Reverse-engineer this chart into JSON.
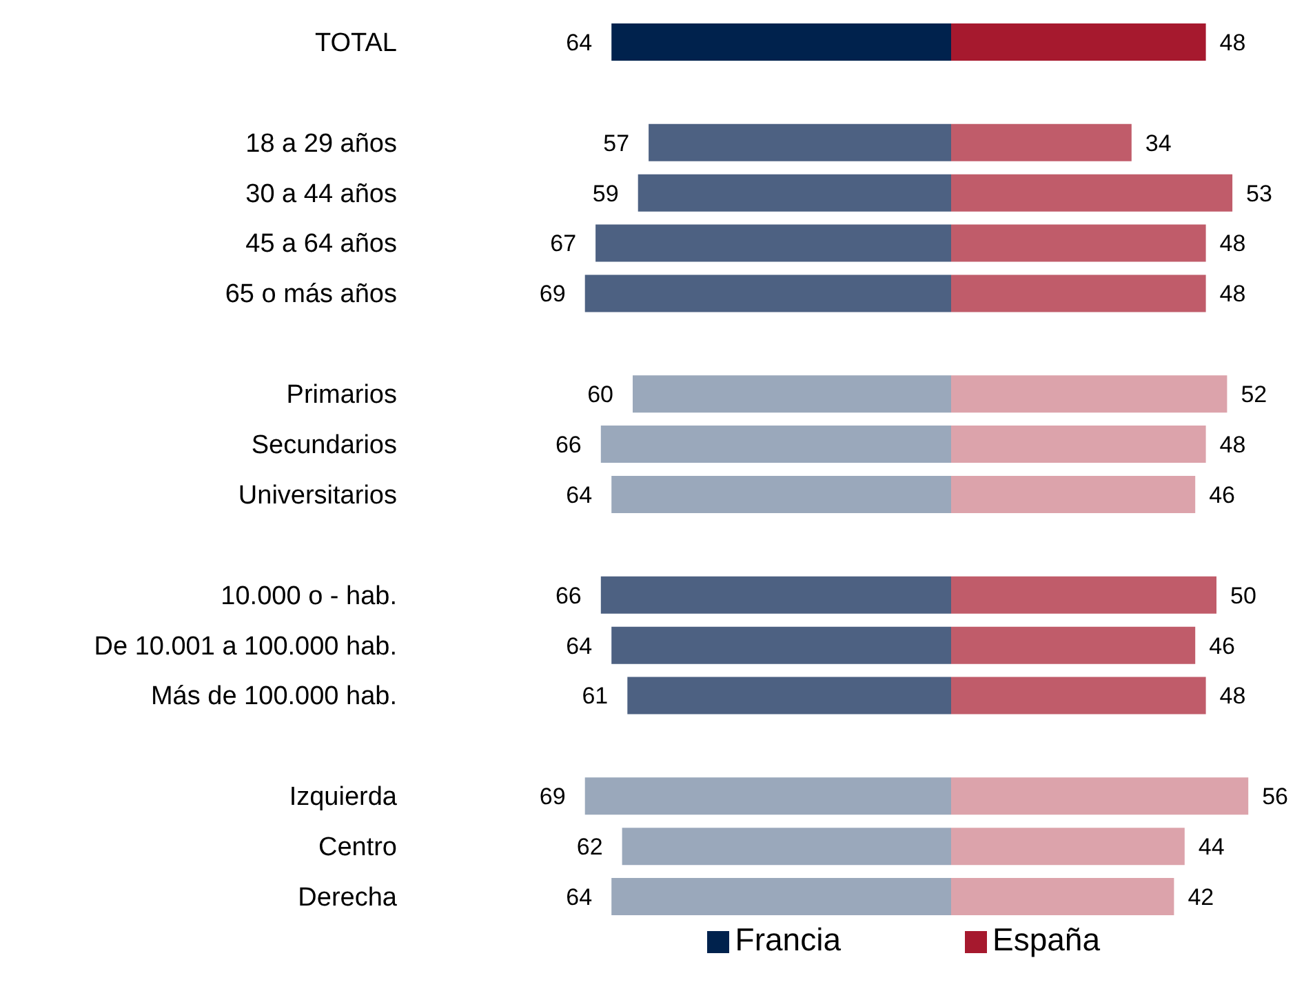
{
  "chart_data": [
    {
      "type": "bar",
      "orientation": "horizontal",
      "categories": [
        "TOTAL",
        null,
        "18 a 29 años",
        "30 a 44 años",
        "45 a 64 años",
        "65 o más años",
        null,
        "Primarios",
        "Secundarios",
        "Universitarios",
        null,
        "10.000 o - hab.",
        "De 10.001 a 100.000 hab.",
        "Más de 100.000 hab.",
        null,
        "Izquierda",
        "Centro",
        "Derecha"
      ],
      "series": [
        {
          "name": "Francia",
          "color": "#00224d",
          "colors": [
            "#00224d",
            null,
            "#4d6182",
            "#4d6182",
            "#4d6182",
            "#4d6182",
            null,
            "#9aa8bb",
            "#9aa8bb",
            "#9aa8bb",
            null,
            "#4d6182",
            "#4d6182",
            "#4d6182",
            null,
            "#9aa8bb",
            "#9aa8bb",
            "#9aa8bb"
          ],
          "values": [
            64,
            null,
            57,
            59,
            67,
            69,
            null,
            60,
            66,
            64,
            null,
            66,
            64,
            61,
            null,
            69,
            62,
            64
          ]
        }
      ],
      "data_labels": true,
      "legend": "bottom right",
      "tick_labels": "y"
    },
    {
      "type": "bar",
      "orientation": "horizontal",
      "series": [
        {
          "name": "España",
          "color": "#a6192e",
          "colors": [
            "#a6192e",
            null,
            "#c05c6a",
            "#c05c6a",
            "#c05c6a",
            "#c05c6a",
            null,
            "#dca3ab",
            "#dca3ab",
            "#dca3ab",
            null,
            "#c05c6a",
            "#c05c6a",
            "#c05c6a",
            null,
            "#dca3ab",
            "#dca3ab",
            "#dca3ab"
          ],
          "values": [
            48,
            null,
            34,
            53,
            48,
            48,
            null,
            52,
            48,
            46,
            null,
            50,
            46,
            48,
            null,
            56,
            44,
            42
          ]
        }
      ],
      "data_labels": true,
      "legend": "bottom left",
      "tick_labels": false
    }
  ]
}
